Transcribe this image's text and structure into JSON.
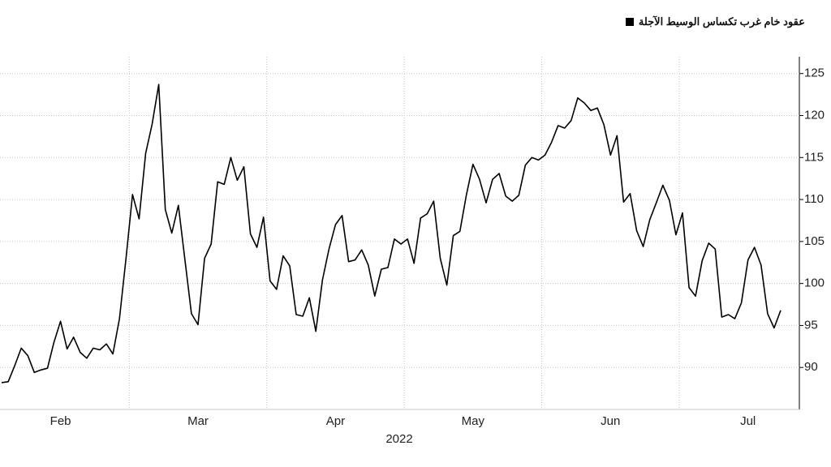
{
  "chart_data": {
    "type": "line",
    "xlabel": "2022",
    "categories": [
      null,
      null,
      null,
      null,
      null,
      null,
      null,
      null,
      null,
      "Feb",
      null,
      null,
      null,
      null,
      null,
      null,
      null,
      null,
      null,
      null,
      null,
      null,
      null,
      null,
      null,
      null,
      null,
      null,
      null,
      null,
      "Mar",
      null,
      null,
      null,
      null,
      null,
      null,
      null,
      null,
      null,
      null,
      null,
      null,
      null,
      null,
      null,
      null,
      null,
      null,
      null,
      null,
      "Apr",
      null,
      null,
      null,
      null,
      null,
      null,
      null,
      null,
      null,
      null,
      null,
      null,
      null,
      null,
      null,
      null,
      null,
      null,
      null,
      null,
      "May",
      null,
      null,
      null,
      null,
      null,
      null,
      null,
      null,
      null,
      null,
      null,
      null,
      null,
      null,
      null,
      null,
      null,
      null,
      null,
      null,
      "Jun",
      null,
      null,
      null,
      null,
      null,
      null,
      null,
      null,
      null,
      null,
      null,
      null,
      null,
      null,
      null,
      null,
      null,
      null,
      null,
      null,
      "Jul",
      null,
      null,
      null,
      null,
      null
    ],
    "series": [
      {
        "name": "عقود خام غرب تكساس الوسيط الآجلة",
        "color": "#000000",
        "values": [
          88.2,
          88.3,
          90.2,
          92.3,
          91.4,
          89.4,
          89.7,
          89.9,
          93.0,
          95.5,
          92.2,
          93.6,
          91.8,
          91.1,
          92.3,
          92.1,
          92.8,
          91.6,
          95.8,
          103,
          110.6,
          107.7,
          115.5,
          119,
          123.7,
          108.8,
          106,
          109.3,
          102.8,
          96.4,
          95.1,
          103,
          104.7,
          112.1,
          111.8,
          115,
          112.3,
          113.9,
          105.9,
          104.3,
          107.9,
          100.3,
          99.3,
          103.3,
          102.1,
          96.3,
          96.1,
          98.3,
          94.3,
          100.4,
          104.1,
          107,
          108.1,
          102.6,
          102.8,
          104,
          102.2,
          98.5,
          101.7,
          101.9,
          105.3,
          104.7,
          105.3,
          102.4,
          107.8,
          108.3,
          109.8,
          103,
          99.8,
          105.7,
          106.2,
          110.6,
          114.2,
          112.4,
          109.6,
          112.4,
          113.1,
          110.4,
          109.8,
          110.5,
          114.1,
          115,
          114.7,
          115.3,
          116.8,
          118.8,
          118.5,
          119.4,
          122.1,
          121.5,
          120.6,
          120.9,
          118.9,
          115.3,
          117.6,
          109.7,
          110.7,
          106.3,
          104.4,
          107.6,
          109.6,
          111.7,
          109.9,
          105.8,
          108.4,
          99.5,
          98.5,
          102.7,
          104.8,
          104.1,
          96,
          96.3,
          95.8,
          97.7,
          102.8,
          104.3,
          102.2,
          96.4,
          94.7,
          96.8
        ]
      }
    ],
    "ylim": [
      85,
      127
    ],
    "yticks": [
      90,
      95,
      100,
      105,
      110,
      115,
      120,
      125
    ],
    "grid": true,
    "y_axis_side": "right",
    "legend": "top-right"
  }
}
